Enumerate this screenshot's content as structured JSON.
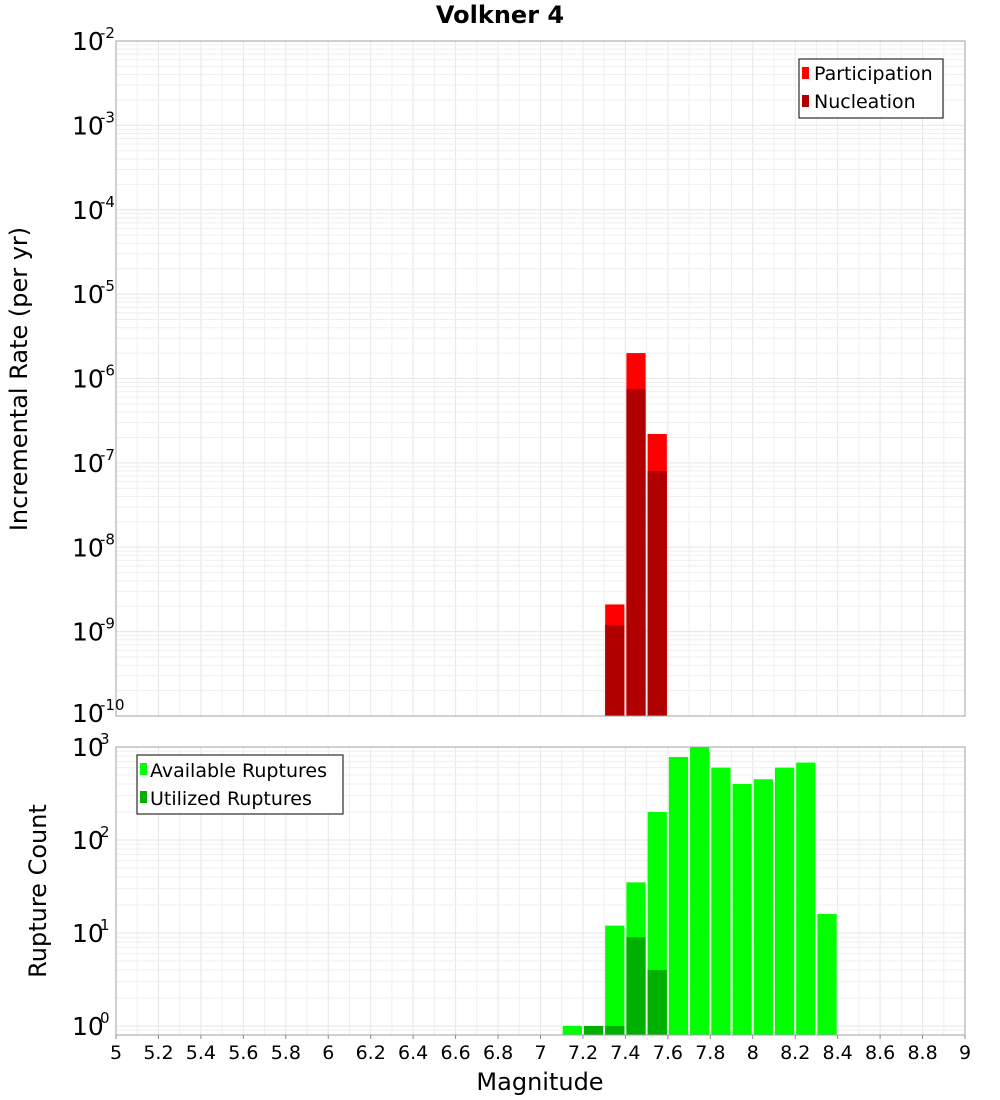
{
  "title": "Volkner 4",
  "colors": {
    "participation": "#ff0000",
    "nucleation": "#b00000",
    "available": "#00ff00",
    "utilized": "#00b000"
  },
  "x_axis": {
    "label": "Magnitude",
    "ticks": [
      "5",
      "5.2",
      "5.4",
      "5.6",
      "5.8",
      "6",
      "6.2",
      "6.4",
      "6.6",
      "6.8",
      "7",
      "7.2",
      "7.4",
      "7.6",
      "7.8",
      "8",
      "8.2",
      "8.4",
      "8.6",
      "8.8",
      "9"
    ]
  },
  "chart_data": [
    {
      "type": "bar",
      "ylabel": "Incremental Rate (per yr)",
      "xlim": [
        5,
        9
      ],
      "ylim": [
        1e-10,
        0.01
      ],
      "yscale": "log",
      "y_tick_exponents": [
        "-2",
        "-3",
        "-4",
        "-5",
        "-6",
        "-7",
        "-8",
        "-9",
        "-10"
      ],
      "grid": true,
      "legend_position": "top-right",
      "legend": [
        "Participation",
        "Nucleation"
      ],
      "series": [
        {
          "name": "Participation",
          "x": [
            7.35,
            7.45,
            7.55
          ],
          "values": [
            2.1e-09,
            2e-06,
            2.2e-07
          ]
        },
        {
          "name": "Nucleation",
          "x": [
            7.35,
            7.45,
            7.55
          ],
          "values": [
            1.2e-09,
            7.5e-07,
            8e-08
          ]
        }
      ]
    },
    {
      "type": "bar",
      "ylabel": "Rupture Count",
      "xlim": [
        5,
        9
      ],
      "ylim": [
        0.8,
        1000
      ],
      "yscale": "log",
      "y_tick_exponents": [
        "3",
        "2",
        "1",
        "0"
      ],
      "grid": true,
      "legend_position": "top-left",
      "legend": [
        "Available Ruptures",
        "Utilized Ruptures"
      ],
      "series": [
        {
          "name": "Available Ruptures",
          "x": [
            7.15,
            7.25,
            7.35,
            7.45,
            7.55,
            7.65,
            7.75,
            7.85,
            7.95,
            8.05,
            8.15,
            8.25,
            8.35
          ],
          "values": [
            1,
            1,
            12,
            35,
            200,
            780,
            1000,
            600,
            400,
            450,
            600,
            680,
            16
          ]
        },
        {
          "name": "Utilized Ruptures",
          "x": [
            7.25,
            7.35,
            7.45,
            7.55
          ],
          "values": [
            1,
            1,
            9,
            4
          ]
        }
      ]
    }
  ]
}
